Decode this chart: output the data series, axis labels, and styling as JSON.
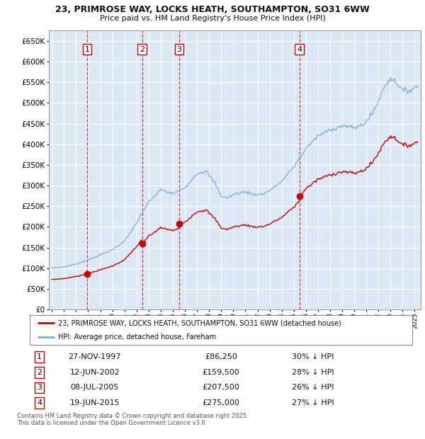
{
  "title1": "23, PRIMROSE WAY, LOCKS HEATH, SOUTHAMPTON, SO31 6WW",
  "title2": "Price paid vs. HM Land Registry's House Price Index (HPI)",
  "ylim": [
    0,
    675000
  ],
  "yticks": [
    0,
    50000,
    100000,
    150000,
    200000,
    250000,
    300000,
    350000,
    400000,
    450000,
    500000,
    550000,
    600000,
    650000
  ],
  "bg_color": "#dce8f5",
  "grid_color": "#ffffff",
  "sale_years_f": [
    1997.9167,
    2002.4583,
    2005.5333,
    2015.4667
  ],
  "sale_prices": [
    86250,
    159500,
    207500,
    275000
  ],
  "sale_labels": [
    "1",
    "2",
    "3",
    "4"
  ],
  "sale_pct": [
    "30% ↓ HPI",
    "28% ↓ HPI",
    "26% ↓ HPI",
    "27% ↓ HPI"
  ],
  "sale_dates_str": [
    "27-NOV-1997",
    "12-JUN-2002",
    "08-JUL-2005",
    "19-JUN-2015"
  ],
  "sale_prices_str": [
    "£86,250",
    "£159,500",
    "£207,500",
    "£275,000"
  ],
  "red_line_color": "#cc0000",
  "blue_line_color": "#7aadd4",
  "legend_label_red": "23, PRIMROSE WAY, LOCKS HEATH, SOUTHAMPTON, SO31 6WW (detached house)",
  "legend_label_blue": "HPI: Average price, detached house, Fareham",
  "footer1": "Contains HM Land Registry data © Crown copyright and database right 2025.",
  "footer2": "This data is licensed under the Open Government Licence v3.0.",
  "hpi_anchors_x": [
    1995.0,
    1996.0,
    1997.0,
    1998.0,
    1999.0,
    2000.0,
    2001.0,
    2002.0,
    2003.0,
    2004.0,
    2005.0,
    2006.0,
    2007.0,
    2007.75,
    2008.5,
    2009.0,
    2009.5,
    2010.0,
    2010.5,
    2011.0,
    2011.5,
    2012.0,
    2012.5,
    2013.0,
    2014.0,
    2015.0,
    2016.0,
    2017.0,
    2018.0,
    2019.0,
    2020.0,
    2020.5,
    2021.0,
    2021.5,
    2022.0,
    2022.5,
    2023.0,
    2023.5,
    2024.0,
    2024.5,
    2025.2
  ],
  "hpi_anchors_y": [
    100000,
    103000,
    110000,
    120000,
    132000,
    145000,
    165000,
    210000,
    260000,
    290000,
    280000,
    295000,
    330000,
    335000,
    305000,
    275000,
    270000,
    278000,
    282000,
    285000,
    280000,
    278000,
    280000,
    288000,
    310000,
    345000,
    390000,
    420000,
    435000,
    445000,
    440000,
    445000,
    455000,
    475000,
    505000,
    540000,
    560000,
    550000,
    530000,
    530000,
    540000
  ]
}
